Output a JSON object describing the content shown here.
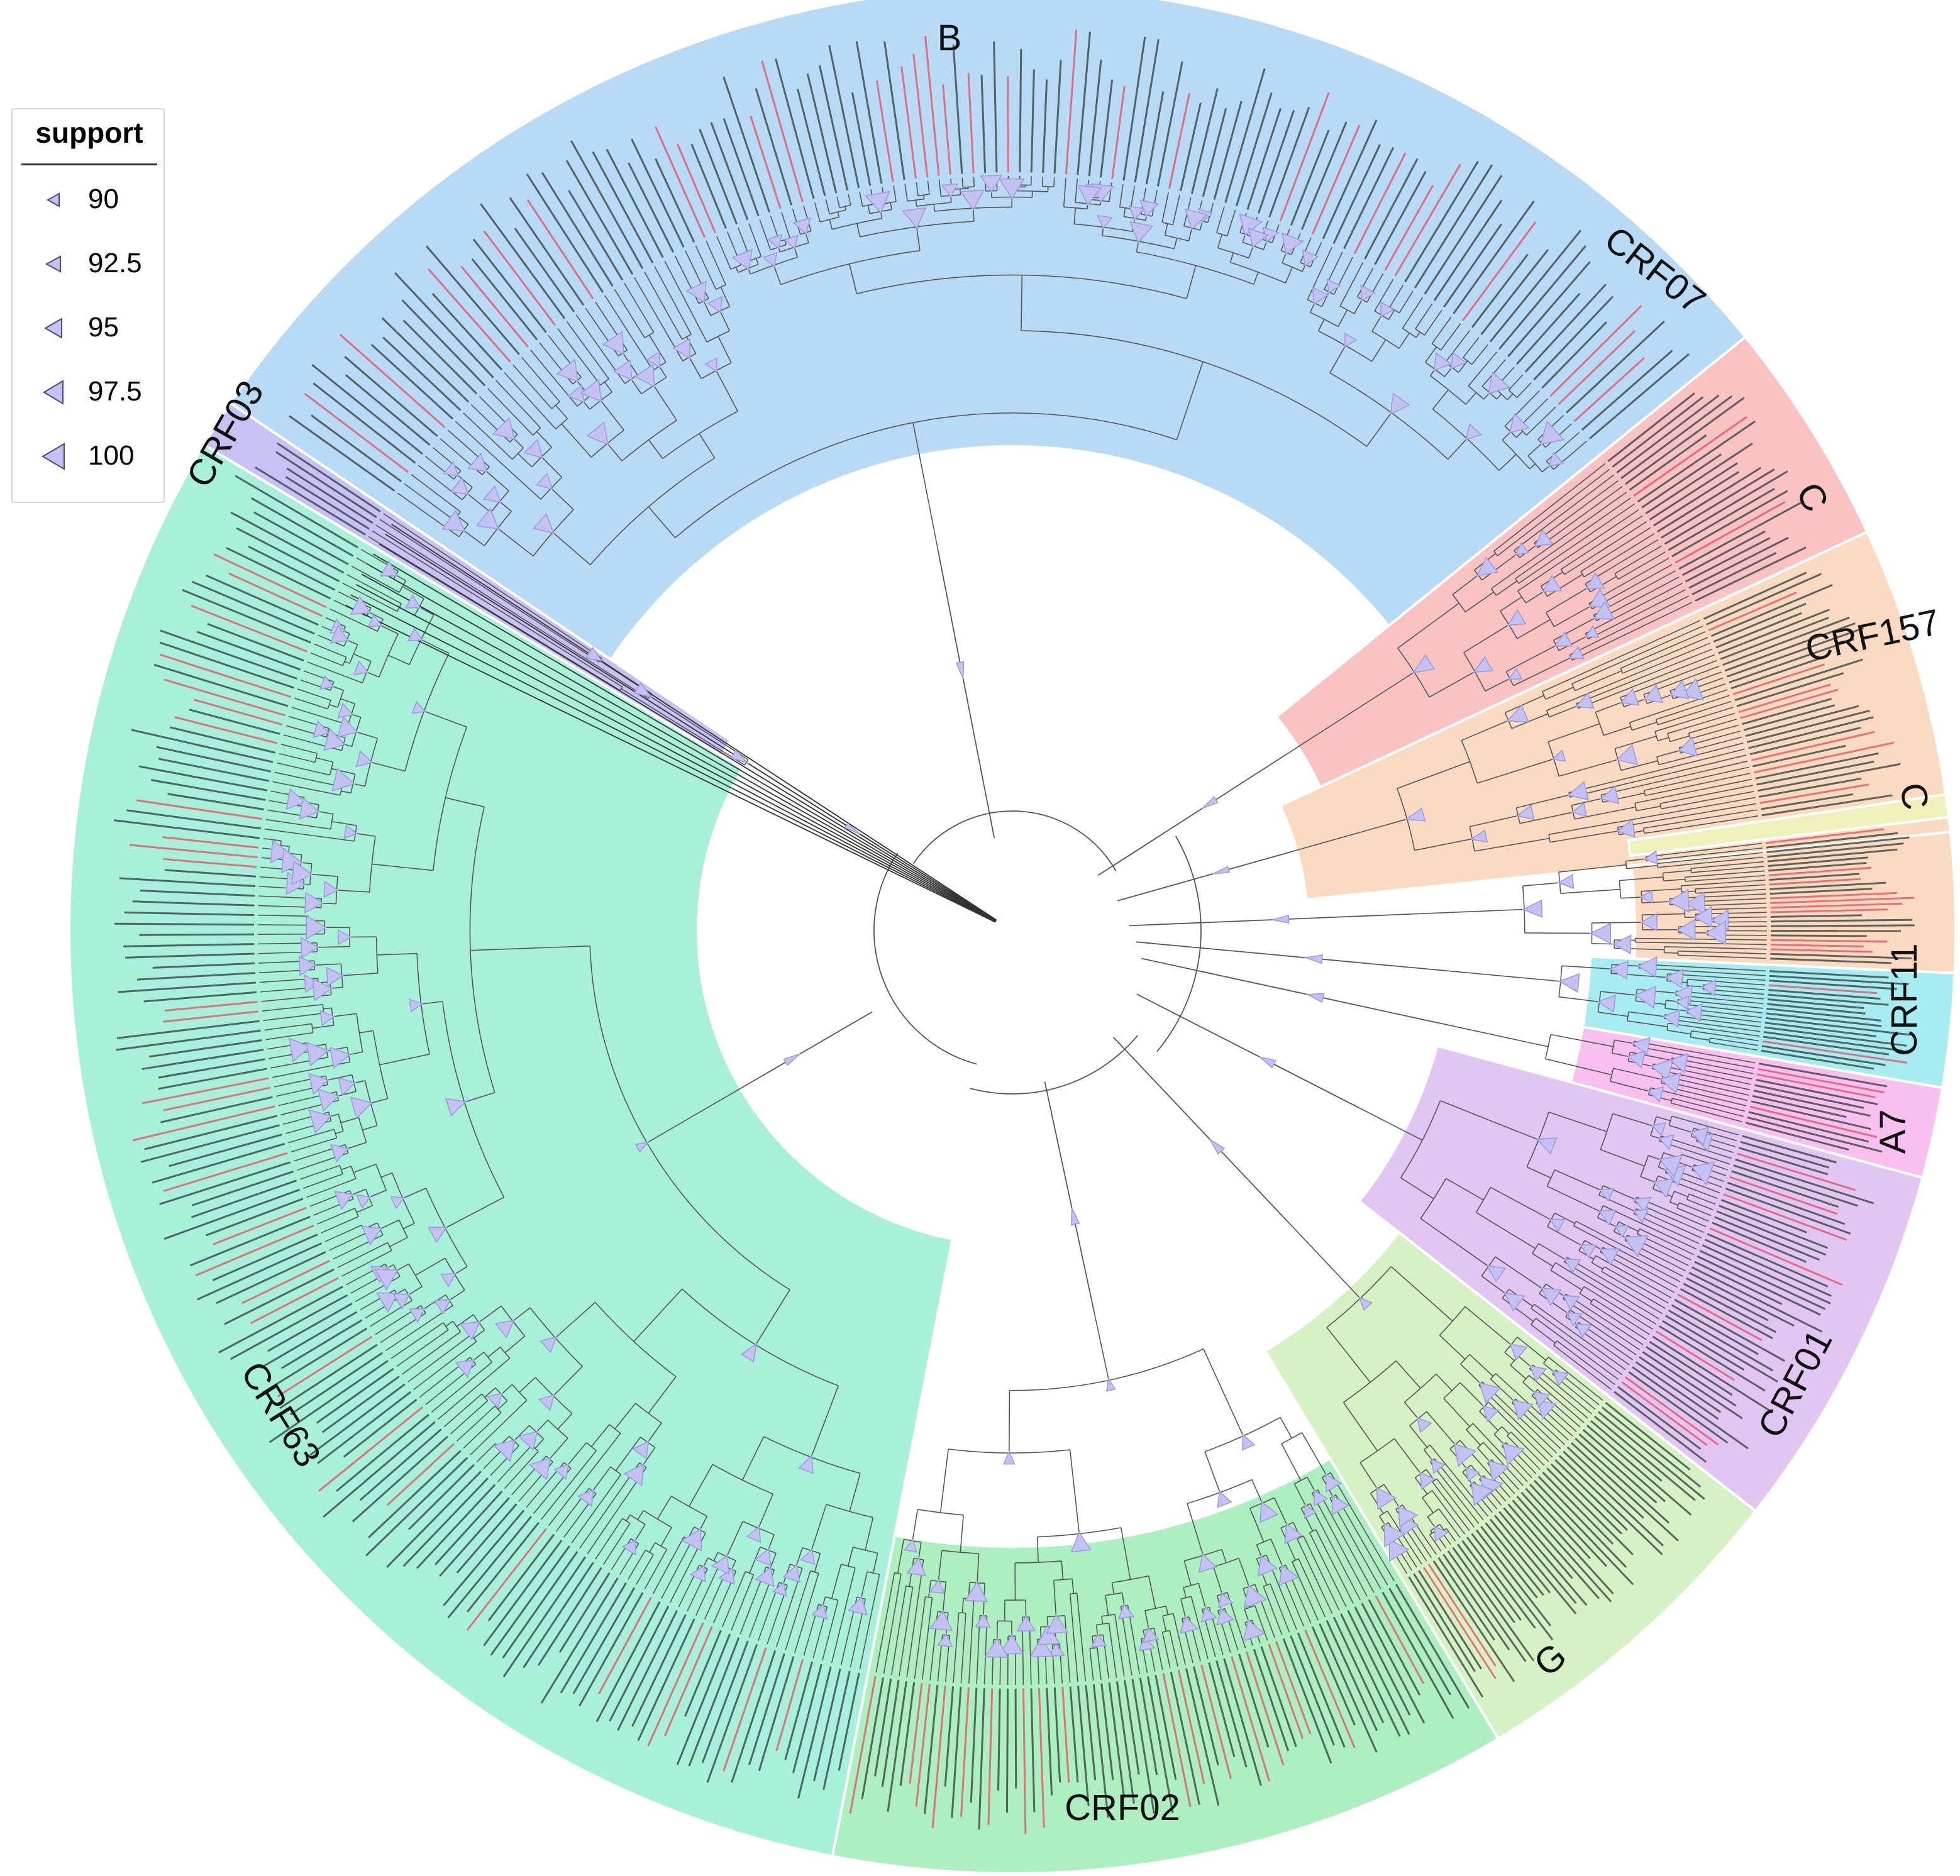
{
  "legend": {
    "title": "support",
    "items": [
      {
        "value": "90",
        "scale": 0.55
      },
      {
        "value": "92.5",
        "scale": 0.68
      },
      {
        "value": "95",
        "scale": 0.8
      },
      {
        "value": "97.5",
        "scale": 0.9
      },
      {
        "value": "100",
        "scale": 1.0
      }
    ]
  },
  "colors": {
    "B": "#b9daf4",
    "CRF07": "#f9c3c3",
    "C": "#fadbc2",
    "CRF157": "#eef1b9",
    "CRF11": "#a7ecf1",
    "A7": "#f8c0ef",
    "CRF01": "#e2c6f2",
    "G": "#d6f2c4",
    "CRF02": "#adefc0",
    "CRF63": "#a9f0da",
    "CRF03": "#c7c2f4",
    "branch": "#555555",
    "support_marker": "#c3c2f2",
    "support_marker_edge": "#9b99d8",
    "tip_highlight": "#e84a5f"
  },
  "clades": [
    {
      "name": "B",
      "label": "B"
    },
    {
      "name": "CRF07",
      "label": "CRF07"
    },
    {
      "name": "C_upper",
      "label": "C"
    },
    {
      "name": "CRF157",
      "label": "CRF157"
    },
    {
      "name": "C_lower",
      "label": "C"
    },
    {
      "name": "CRF11",
      "label": "CRF11"
    },
    {
      "name": "A7",
      "label": "A7"
    },
    {
      "name": "CRF01",
      "label": "CRF01"
    },
    {
      "name": "G",
      "label": "G"
    },
    {
      "name": "CRF02",
      "label": "CRF02"
    },
    {
      "name": "CRF63",
      "label": "CRF63"
    },
    {
      "name": "CRF03",
      "label": "CRF03"
    }
  ]
}
